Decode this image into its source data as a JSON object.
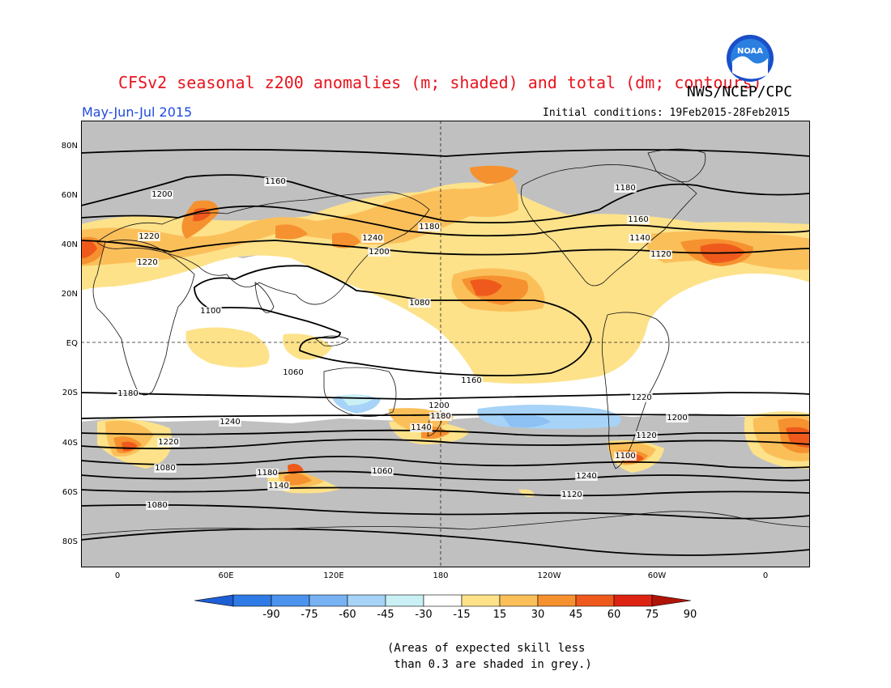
{
  "title": "CFSv2 seasonal z200 anomalies (m; shaded) and total (dm; contours)",
  "agency": "NWS/NCEP/CPC",
  "logo_text": "NOAA",
  "period": "May-Jun-Jul 2015",
  "initial_conditions": "Initial conditions: 19Feb2015-28Feb2015",
  "lat_labels": [
    "80N",
    "60N",
    "40N",
    "20N",
    "EQ",
    "20S",
    "40S",
    "60S",
    "80S"
  ],
  "lon_labels": [
    "0",
    "60E",
    "120E",
    "180",
    "120W",
    "60W",
    "0"
  ],
  "colorbar": {
    "labels": [
      "-90",
      "-75",
      "-60",
      "-45",
      "-30",
      "-15",
      "15",
      "30",
      "45",
      "60",
      "75",
      "90"
    ],
    "colors": [
      "#1e5fd6",
      "#2f7be6",
      "#4b93ee",
      "#78b2f3",
      "#a6d3f7",
      "#c9f0f4",
      "#ffffff",
      "#fde28a",
      "#fbbf5a",
      "#f6912f",
      "#ef5a1c",
      "#dd2412",
      "#b01408"
    ]
  },
  "contour_labels": [
    "1160",
    "1180",
    "1200",
    "1220",
    "1240",
    "1220",
    "1200",
    "1180",
    "1160",
    "1140",
    "1120",
    "1100",
    "1080",
    "1060",
    "1160",
    "1180",
    "1200",
    "1220",
    "1240",
    "1180",
    "1200",
    "1220",
    "1140",
    "1120",
    "1100",
    "1080",
    "1060",
    "1240",
    "1180",
    "1140",
    "1120",
    "1080"
  ],
  "note": "(Areas of expected skill less\n than 0.3 are shaded in grey.)",
  "colors": {
    "grey_mask": "#c0c0c0",
    "title_red": "#e8141e",
    "period_blue": "#1f4ae0"
  }
}
